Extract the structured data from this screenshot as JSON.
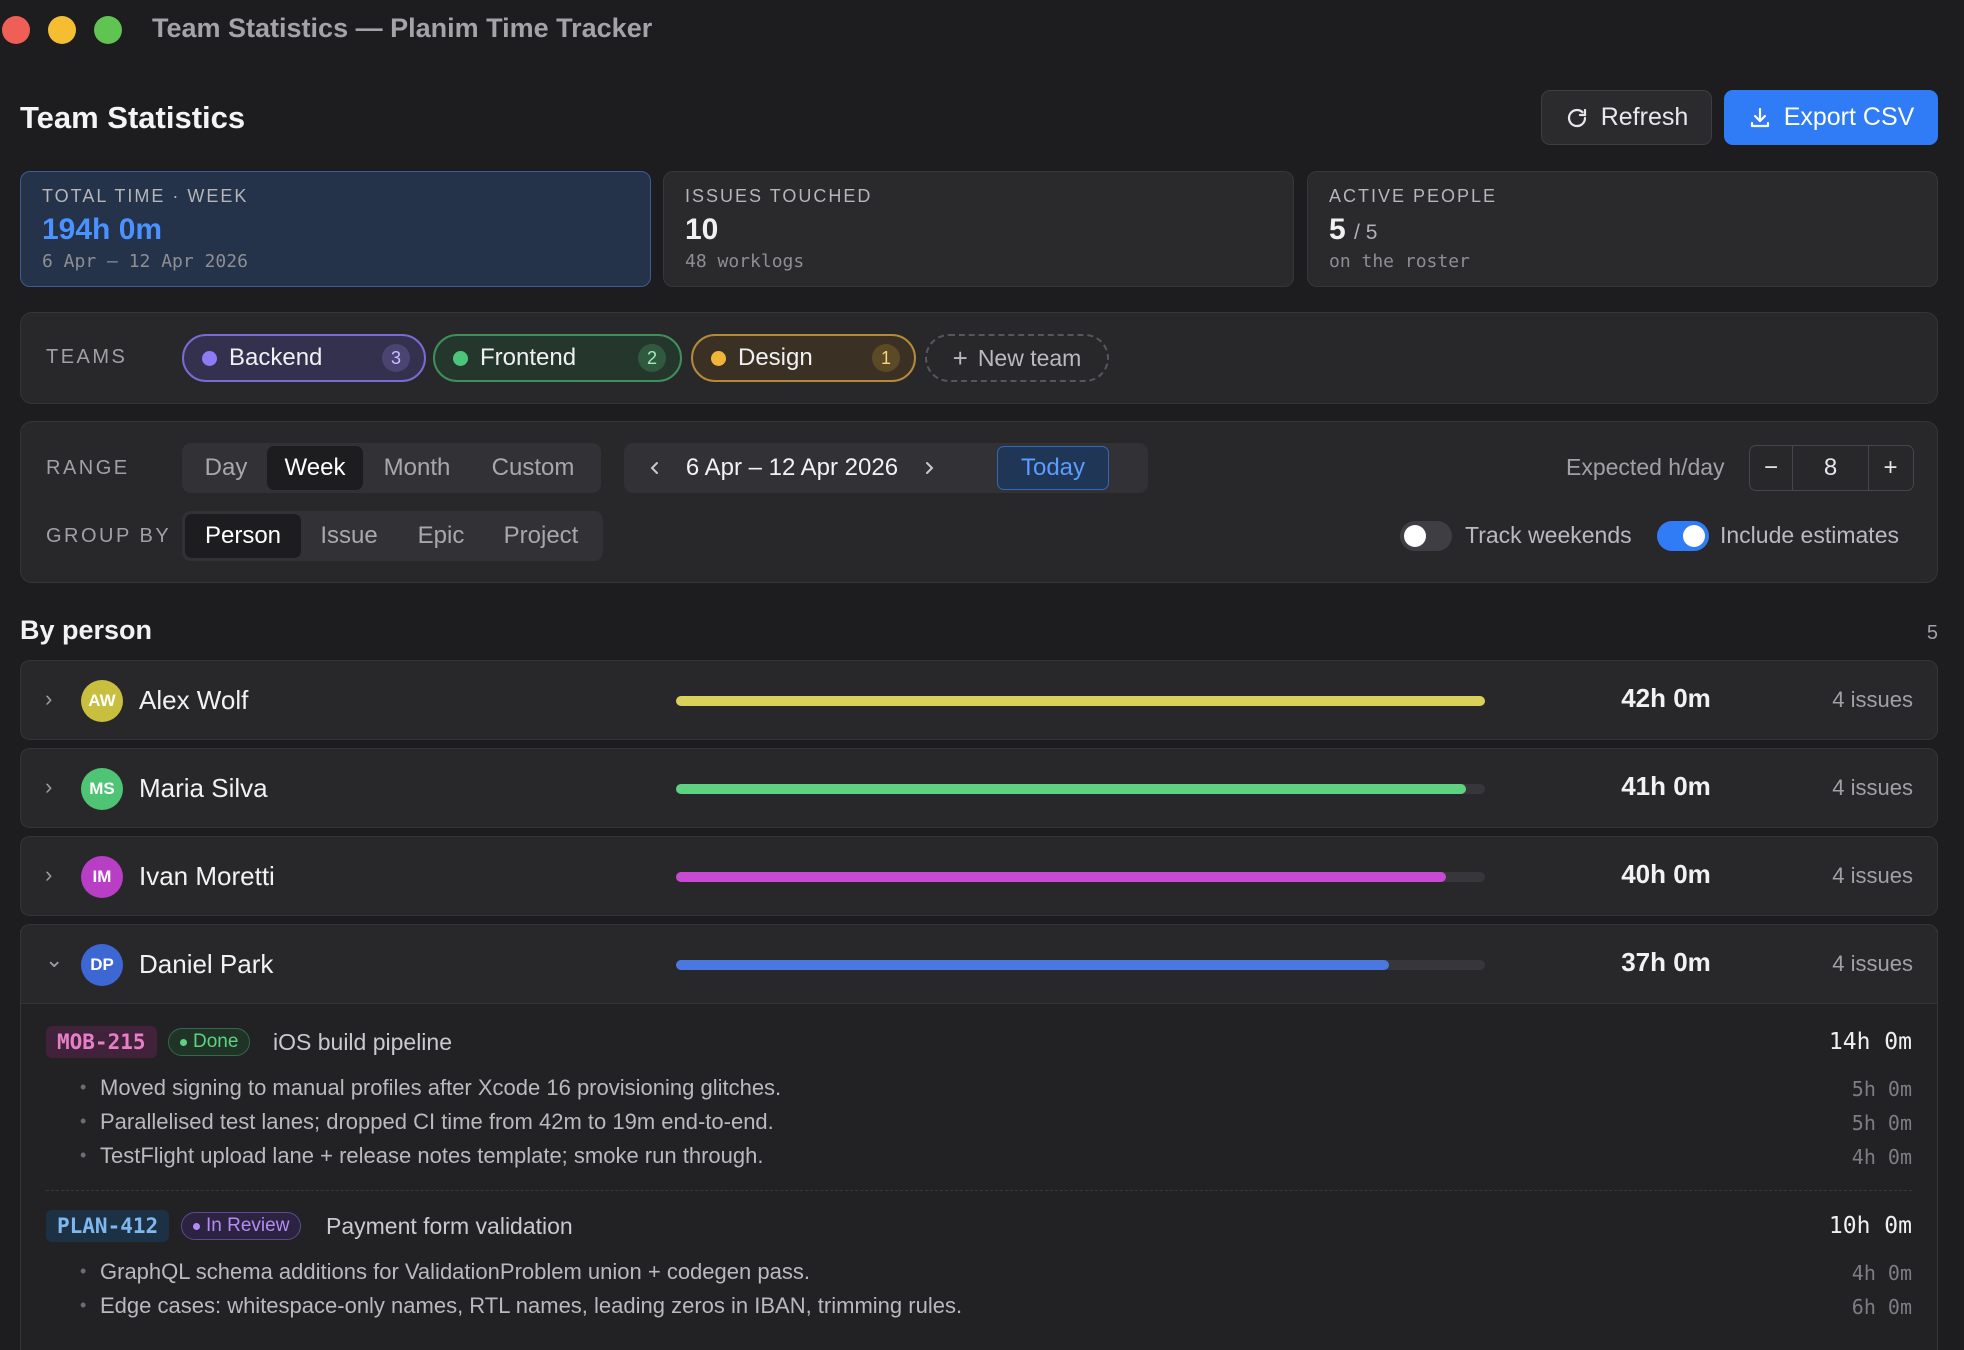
{
  "window": {
    "title": "Team Statistics — Planim Time Tracker"
  },
  "header": {
    "title": "Team Statistics",
    "refresh_label": "Refresh",
    "export_label": "Export CSV"
  },
  "stats": [
    {
      "label": "TOTAL TIME · WEEK",
      "value": "194h 0m",
      "value_suffix": "",
      "sub": "6 Apr – 12 Apr 2026"
    },
    {
      "label": "ISSUES TOUCHED",
      "value": "10",
      "value_suffix": "",
      "sub": "48 worklogs"
    },
    {
      "label": "ACTIVE PEOPLE",
      "value": "5",
      "value_suffix": "/ 5",
      "sub": "on the roster"
    }
  ],
  "teams": {
    "label": "TEAMS",
    "items": [
      {
        "name": "Backend",
        "count": "3",
        "color": "#8b7cf6"
      },
      {
        "name": "Frontend",
        "count": "2",
        "color": "#4cc57a"
      },
      {
        "name": "Design",
        "count": "1",
        "color": "#f0b43a"
      }
    ],
    "new_label": "New team"
  },
  "filters": {
    "range_label": "RANGE",
    "range_options": [
      "Day",
      "Week",
      "Month",
      "Custom"
    ],
    "range_selected": "Week",
    "date_range": "6 Apr – 12 Apr 2026",
    "today_label": "Today",
    "expected_label": "Expected h/day",
    "expected_value": "8",
    "group_label": "GROUP BY",
    "group_options": [
      "Person",
      "Issue",
      "Epic",
      "Project"
    ],
    "group_selected": "Person",
    "track_weekends_label": "Track weekends",
    "track_weekends": false,
    "include_estimates_label": "Include estimates",
    "include_estimates": true
  },
  "by_person": {
    "title": "By person",
    "count": "5",
    "people": [
      {
        "initials": "AW",
        "name": "Alex Wolf",
        "time": "42h 0m",
        "issues": "4 issues",
        "progress": 1.0,
        "color": "#d9d15a",
        "expanded": false
      },
      {
        "initials": "MS",
        "name": "Maria Silva",
        "time": "41h 0m",
        "issues": "4 issues",
        "progress": 0.976,
        "color": "#5fd282",
        "expanded": false
      },
      {
        "initials": "IM",
        "name": "Ivan Moretti",
        "time": "40h 0m",
        "issues": "4 issues",
        "progress": 0.952,
        "color": "#c84ad4",
        "expanded": false
      },
      {
        "initials": "DP",
        "name": "Daniel Park",
        "time": "37h 0m",
        "issues": "4 issues",
        "progress": 0.881,
        "color": "#4a78e0",
        "expanded": true
      }
    ],
    "expanded_issues": [
      {
        "key": "MOB-215",
        "status": "Done",
        "title": "iOS build pipeline",
        "time": "14h 0m",
        "notes": [
          {
            "text": "Moved signing to manual profiles after Xcode 16 provisioning glitches.",
            "time": "5h 0m"
          },
          {
            "text": "Parallelised test lanes; dropped CI time from 42m to 19m end-to-end.",
            "time": "5h 0m"
          },
          {
            "text": "TestFlight upload lane + release notes template; smoke run through.",
            "time": "4h 0m"
          }
        ]
      },
      {
        "key": "PLAN-412",
        "status": "In Review",
        "title": "Payment form validation",
        "time": "10h 0m",
        "notes": [
          {
            "text": "GraphQL schema additions for ValidationProblem union + codegen pass.",
            "time": "4h 0m"
          },
          {
            "text": "Edge cases: whitespace-only names, RTL names, leading zeros in IBAN, trimming rules.",
            "time": "6h 0m"
          }
        ]
      }
    ]
  },
  "colors": {
    "accent": "#2f7cf6",
    "done": "#4cc57a",
    "in_review": "#a76ff0"
  }
}
